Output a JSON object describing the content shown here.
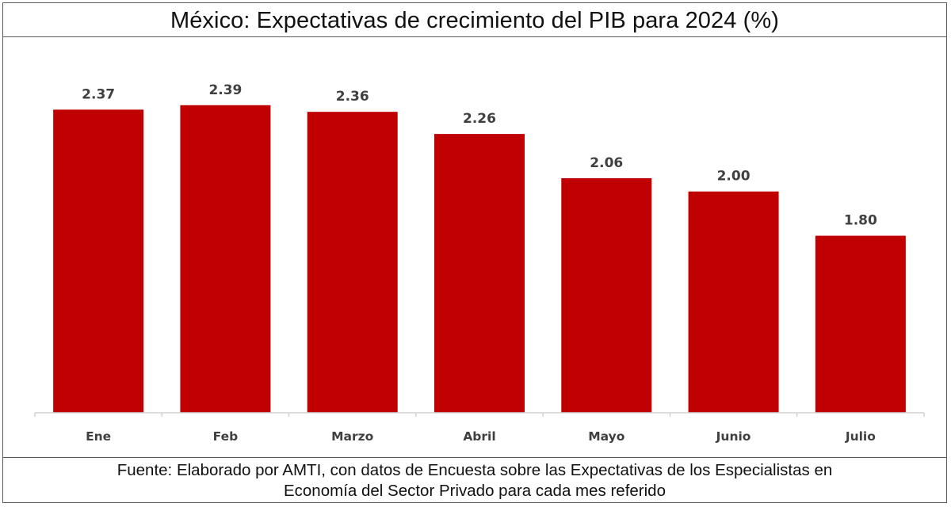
{
  "chart_data": {
    "type": "bar",
    "title": "México: Expectativas de crecimiento del PIB para 2024 (%)",
    "xlabel": "",
    "ylabel": "",
    "categories": [
      "Ene",
      "Feb",
      "Marzo",
      "Abril",
      "Mayo",
      "Junio",
      "Julio"
    ],
    "values": [
      2.37,
      2.39,
      2.36,
      2.26,
      2.06,
      2.0,
      1.8
    ],
    "value_labels": [
      "2.37",
      "2.39",
      "2.36",
      "2.26",
      "2.06",
      "2.00",
      "1.80"
    ],
    "ylim": [
      1.0,
      2.4
    ],
    "grid": false,
    "legend": "none",
    "bar_color": "#C00000",
    "label_color": "#404040"
  },
  "footer": {
    "source_line1": "Fuente: Elaborado por AMTI, con datos de Encuesta sobre las Expectativas de los Especialistas en",
    "source_line2": "Economía del Sector Privado para cada mes referido"
  }
}
